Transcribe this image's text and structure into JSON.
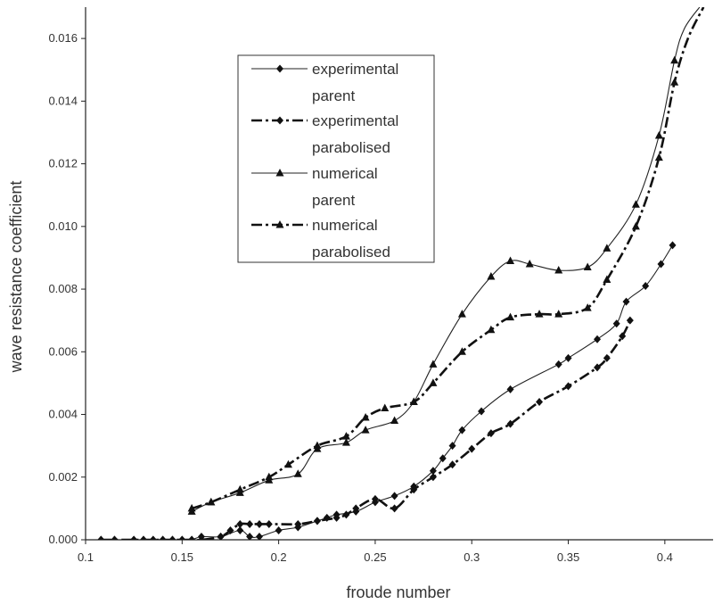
{
  "chart_data": {
    "type": "line",
    "xlabel": "froude number",
    "ylabel": "wave resistance coefficient",
    "xlim": [
      0.1,
      0.425
    ],
    "ylim": [
      0,
      0.017
    ],
    "x_ticks": [
      "0.1",
      "0.15",
      "0.2",
      "0.25",
      "0.3",
      "0.35",
      "0.4"
    ],
    "y_ticks": [
      "0.000",
      "0.002",
      "0.004",
      "0.006",
      "0.008",
      "0.010",
      "0.012",
      "0.014",
      "0.016"
    ],
    "grid": false,
    "legend_position": "upper-left",
    "series": [
      {
        "name": "experimental parent",
        "line": "solid-thin",
        "marker": "diamond",
        "points": [
          [
            0.108,
            0.0
          ],
          [
            0.115,
            0.0
          ],
          [
            0.125,
            0.0
          ],
          [
            0.13,
            0.0
          ],
          [
            0.135,
            0.0
          ],
          [
            0.14,
            0.0
          ],
          [
            0.145,
            0.0
          ],
          [
            0.15,
            0.0
          ],
          [
            0.155,
            0.0
          ],
          [
            0.16,
            0.0001
          ],
          [
            0.17,
            0.0001
          ],
          [
            0.18,
            0.0003
          ],
          [
            0.185,
            0.0001
          ],
          [
            0.19,
            0.0001
          ],
          [
            0.2,
            0.0003
          ],
          [
            0.21,
            0.0004
          ],
          [
            0.22,
            0.0006
          ],
          [
            0.225,
            0.0007
          ],
          [
            0.23,
            0.0008
          ],
          [
            0.24,
            0.0009
          ],
          [
            0.25,
            0.0012
          ],
          [
            0.26,
            0.0014
          ],
          [
            0.27,
            0.0017
          ],
          [
            0.28,
            0.0022
          ],
          [
            0.285,
            0.0026
          ],
          [
            0.29,
            0.003
          ],
          [
            0.295,
            0.0035
          ],
          [
            0.305,
            0.0041
          ],
          [
            0.32,
            0.0048
          ],
          [
            0.345,
            0.0056
          ],
          [
            0.35,
            0.0058
          ],
          [
            0.365,
            0.0064
          ],
          [
            0.375,
            0.0069
          ],
          [
            0.38,
            0.0076
          ],
          [
            0.39,
            0.0081
          ],
          [
            0.398,
            0.0088
          ],
          [
            0.404,
            0.0094
          ]
        ],
        "extension": []
      },
      {
        "name": "experimental parabolised",
        "line": "dashdot-thick",
        "marker": "diamond",
        "points": [
          [
            0.108,
            0.0
          ],
          [
            0.115,
            0.0
          ],
          [
            0.125,
            0.0
          ],
          [
            0.13,
            0.0
          ],
          [
            0.135,
            0.0
          ],
          [
            0.14,
            0.0
          ],
          [
            0.145,
            0.0
          ],
          [
            0.15,
            0.0
          ],
          [
            0.155,
            0.0
          ],
          [
            0.16,
            0.0
          ],
          [
            0.17,
            0.0001
          ],
          [
            0.175,
            0.0003
          ],
          [
            0.18,
            0.0005
          ],
          [
            0.185,
            0.0005
          ],
          [
            0.19,
            0.0005
          ],
          [
            0.195,
            0.0005
          ],
          [
            0.21,
            0.0005
          ],
          [
            0.22,
            0.0006
          ],
          [
            0.23,
            0.0007
          ],
          [
            0.235,
            0.0008
          ],
          [
            0.24,
            0.001
          ],
          [
            0.25,
            0.0013
          ],
          [
            0.26,
            0.001
          ],
          [
            0.27,
            0.0016
          ],
          [
            0.28,
            0.002
          ],
          [
            0.29,
            0.0024
          ],
          [
            0.3,
            0.0029
          ],
          [
            0.31,
            0.0034
          ],
          [
            0.32,
            0.0037
          ],
          [
            0.335,
            0.0044
          ],
          [
            0.35,
            0.0049
          ],
          [
            0.365,
            0.0055
          ],
          [
            0.37,
            0.0058
          ],
          [
            0.378,
            0.0065
          ],
          [
            0.382,
            0.007
          ]
        ],
        "extension": []
      },
      {
        "name": "numerical parent",
        "line": "solid-thin",
        "marker": "triangle",
        "points": [
          [
            0.155,
            0.0009
          ],
          [
            0.165,
            0.0012
          ],
          [
            0.18,
            0.0015
          ],
          [
            0.195,
            0.0019
          ],
          [
            0.21,
            0.0021
          ],
          [
            0.22,
            0.0029
          ],
          [
            0.235,
            0.0031
          ],
          [
            0.245,
            0.0035
          ],
          [
            0.26,
            0.0038
          ],
          [
            0.27,
            0.0044
          ],
          [
            0.28,
            0.0056
          ],
          [
            0.295,
            0.0072
          ],
          [
            0.31,
            0.0084
          ],
          [
            0.32,
            0.0089
          ],
          [
            0.33,
            0.0088
          ],
          [
            0.345,
            0.0086
          ],
          [
            0.36,
            0.0087
          ],
          [
            0.37,
            0.0093
          ],
          [
            0.385,
            0.0107
          ],
          [
            0.397,
            0.0129
          ],
          [
            0.405,
            0.0153
          ]
        ],
        "extension": [
          [
            0.41,
            0.0163
          ],
          [
            0.418,
            0.017
          ]
        ]
      },
      {
        "name": "numerical parabolised",
        "line": "dashdot-thick",
        "marker": "triangle",
        "points": [
          [
            0.155,
            0.001
          ],
          [
            0.165,
            0.0012
          ],
          [
            0.18,
            0.0016
          ],
          [
            0.195,
            0.002
          ],
          [
            0.205,
            0.0024
          ],
          [
            0.22,
            0.003
          ],
          [
            0.235,
            0.0033
          ],
          [
            0.245,
            0.0039
          ],
          [
            0.255,
            0.0042
          ],
          [
            0.27,
            0.0044
          ],
          [
            0.28,
            0.005
          ],
          [
            0.295,
            0.006
          ],
          [
            0.31,
            0.0067
          ],
          [
            0.32,
            0.0071
          ],
          [
            0.335,
            0.0072
          ],
          [
            0.345,
            0.0072
          ],
          [
            0.36,
            0.0074
          ],
          [
            0.37,
            0.0083
          ],
          [
            0.385,
            0.01
          ],
          [
            0.397,
            0.0122
          ],
          [
            0.405,
            0.0146
          ]
        ],
        "extension": [
          [
            0.412,
            0.016
          ],
          [
            0.42,
            0.017
          ]
        ]
      }
    ]
  }
}
